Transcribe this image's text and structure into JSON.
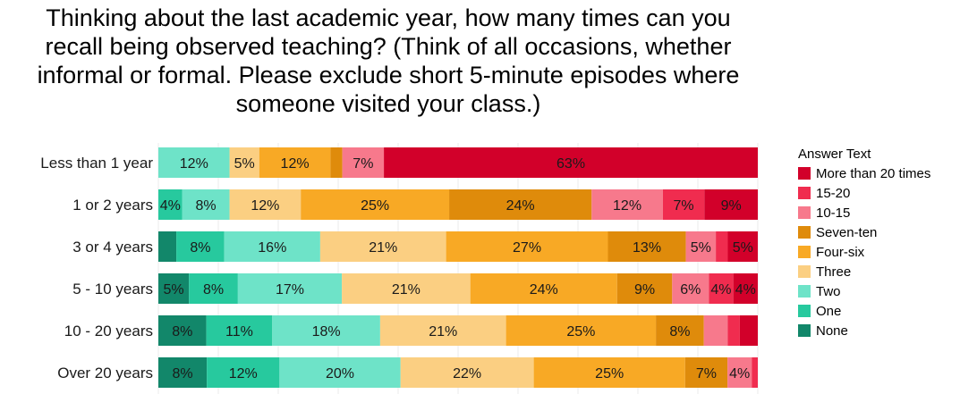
{
  "chart_data": {
    "type": "bar",
    "orientation": "horizontal",
    "stacked": true,
    "title": "Thinking about the last academic year, how many times can you recall being observed teaching? (Think of all occasions, whether informal or formal. Please exclude short 5-minute episodes where someone visited your class.)",
    "title_lines": [
      "Thinking about the last academic year, how many times can you",
      "recall being observed teaching? (Think of all occasions, whether",
      "informal or formal. Please exclude short 5-minute episodes where",
      "someone visited your class.)"
    ],
    "categories": [
      "Less than 1 year",
      "1 or 2 years",
      "3 or 4 years",
      "5 - 10 years",
      "10 - 20 years",
      "Over 20 years"
    ],
    "legend_title": "Answer Text",
    "legend_order": [
      "More than 20 times",
      "15-20",
      "10-15",
      "Seven-ten",
      "Four-six",
      "Three",
      "Two",
      "One",
      "None"
    ],
    "series": [
      {
        "name": "None",
        "color": "#12876a",
        "values": [
          0,
          0,
          3,
          5,
          8,
          8
        ]
      },
      {
        "name": "One",
        "color": "#27c99e",
        "values": [
          0,
          4,
          8,
          8,
          11,
          12
        ]
      },
      {
        "name": "Two",
        "color": "#6ee3c8",
        "values": [
          12,
          8,
          16,
          17,
          18,
          20
        ]
      },
      {
        "name": "Three",
        "color": "#fbcf82",
        "values": [
          5,
          12,
          21,
          21,
          21,
          22
        ]
      },
      {
        "name": "Four-six",
        "color": "#f8a925",
        "values": [
          12,
          25,
          27,
          24,
          25,
          25
        ]
      },
      {
        "name": "Seven-ten",
        "color": "#df8b0b",
        "values": [
          2,
          24,
          13,
          9,
          8,
          7
        ]
      },
      {
        "name": "10-15",
        "color": "#f7798c",
        "values": [
          7,
          12,
          5,
          6,
          4,
          4
        ]
      },
      {
        "name": "15-20",
        "color": "#f02c4f",
        "values": [
          0,
          7,
          2,
          4,
          2,
          1
        ]
      },
      {
        "name": "More than 20 times",
        "color": "#d2002a",
        "values": [
          63,
          9,
          5,
          4,
          3,
          0
        ]
      }
    ],
    "data_labels": [
      [
        "",
        "",
        "12%",
        "5%",
        "12%",
        "",
        "7%",
        "",
        "63%"
      ],
      [
        "",
        "4%",
        "8%",
        "12%",
        "25%",
        "24%",
        "12%",
        "7%",
        "9%"
      ],
      [
        "",
        "8%",
        "16%",
        "21%",
        "27%",
        "13%",
        "5%",
        "",
        "5%"
      ],
      [
        "5%",
        "8%",
        "17%",
        "21%",
        "24%",
        "9%",
        "6%",
        "4%",
        "4%"
      ],
      [
        "8%",
        "11%",
        "18%",
        "21%",
        "25%",
        "8%",
        "",
        "",
        ""
      ],
      [
        "8%",
        "12%",
        "20%",
        "22%",
        "25%",
        "7%",
        "4%",
        "",
        ""
      ]
    ],
    "xlim": [
      0,
      100
    ],
    "grid": true,
    "legend_position": "right"
  }
}
